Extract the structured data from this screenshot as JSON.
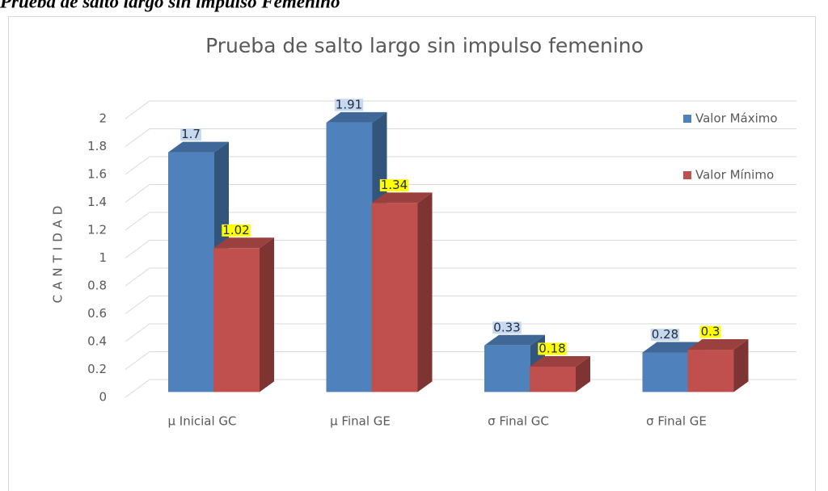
{
  "caption": "Prueba de salto largo sin impulso Femenino",
  "chart_data": {
    "type": "bar3d",
    "title": "Prueba de salto largo sin impulso femenino",
    "ylabel": "CANTIDAD",
    "categories": [
      "µ Inicial GC",
      "µ Final GE",
      "σ Final GC",
      "σ Final GE"
    ],
    "series": [
      {
        "name": "Valor Máximo",
        "color": "#4f81bd",
        "label_bg": "#c6d9f1",
        "values": [
          1.7,
          1.91,
          0.33,
          0.28
        ]
      },
      {
        "name": "Valor Mínimo",
        "color": "#c0504d",
        "label_bg": "#ffff00",
        "values": [
          1.02,
          1.34,
          0.18,
          0.3
        ]
      }
    ],
    "ylim": [
      0,
      2
    ],
    "yticks": [
      0,
      0.2,
      0.4,
      0.6,
      0.8,
      1,
      1.2,
      1.4,
      1.6,
      1.8,
      2
    ],
    "grid": true,
    "legend": "right"
  }
}
